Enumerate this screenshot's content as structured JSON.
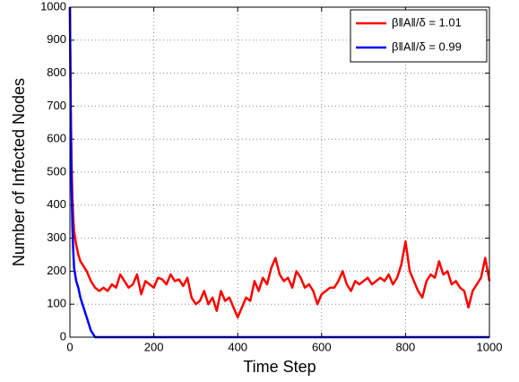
{
  "chart_data": {
    "type": "line",
    "x_label": "Time Step",
    "y_label": "Number of Infected Nodes",
    "x": [
      0,
      2,
      4,
      6,
      8,
      10,
      15,
      20,
      25,
      30,
      40,
      50,
      60,
      70,
      80,
      90,
      100,
      110,
      120,
      130,
      140,
      150,
      160,
      170,
      180,
      190,
      200,
      210,
      220,
      230,
      240,
      250,
      260,
      270,
      280,
      290,
      300,
      310,
      320,
      330,
      340,
      350,
      360,
      370,
      380,
      390,
      400,
      410,
      420,
      430,
      440,
      450,
      460,
      470,
      480,
      490,
      500,
      510,
      520,
      530,
      540,
      550,
      560,
      570,
      580,
      590,
      600,
      610,
      620,
      630,
      640,
      650,
      660,
      670,
      680,
      690,
      700,
      710,
      720,
      730,
      740,
      750,
      760,
      770,
      780,
      790,
      800,
      810,
      820,
      830,
      840,
      850,
      860,
      870,
      880,
      890,
      900,
      910,
      920,
      930,
      940,
      950,
      960,
      970,
      980,
      990,
      1000
    ],
    "series": [
      {
        "name": "β‖A‖/δ = 1.01",
        "color": "#ff0000",
        "values": [
          1000,
          700,
          520,
          420,
          360,
          320,
          280,
          250,
          230,
          220,
          200,
          170,
          150,
          140,
          150,
          140,
          160,
          150,
          190,
          170,
          150,
          160,
          190,
          130,
          170,
          160,
          150,
          180,
          175,
          160,
          190,
          170,
          175,
          155,
          180,
          120,
          100,
          110,
          140,
          100,
          120,
          80,
          140,
          110,
          120,
          90,
          60,
          90,
          120,
          110,
          170,
          140,
          180,
          160,
          210,
          240,
          190,
          170,
          180,
          150,
          200,
          180,
          150,
          160,
          140,
          100,
          130,
          140,
          150,
          150,
          170,
          200,
          160,
          140,
          170,
          160,
          170,
          180,
          160,
          170,
          180,
          170,
          190,
          160,
          180,
          220,
          290,
          200,
          170,
          140,
          120,
          170,
          190,
          180,
          230,
          190,
          200,
          160,
          170,
          150,
          140,
          90,
          140,
          160,
          180,
          240,
          170
        ]
      },
      {
        "name": "β‖A‖/δ = 0.99",
        "color": "#0000ff",
        "values": [
          1000,
          650,
          450,
          330,
          260,
          210,
          170,
          150,
          120,
          100,
          60,
          20,
          0,
          0,
          0,
          0,
          0,
          0,
          0,
          0,
          0,
          0,
          0,
          0,
          0,
          0,
          0,
          0,
          0,
          0,
          0,
          0,
          0,
          0,
          0,
          0,
          0,
          0,
          0,
          0,
          0,
          0,
          0,
          0,
          0,
          0,
          0,
          0,
          0,
          0,
          0,
          0,
          0,
          0,
          0,
          0,
          0,
          0,
          0,
          0,
          0,
          0,
          0,
          0,
          0,
          0,
          0,
          0,
          0,
          0,
          0,
          0,
          0,
          0,
          0,
          0,
          0,
          0,
          0,
          0,
          0,
          0,
          0,
          0,
          0,
          0,
          0,
          0,
          0,
          0,
          0,
          0,
          0,
          0,
          0,
          0,
          0,
          0,
          0,
          0,
          0,
          0,
          0,
          0,
          0,
          0,
          0
        ]
      }
    ],
    "xlim": [
      0,
      1000
    ],
    "xticks": [
      0,
      200,
      400,
      600,
      800,
      1000
    ],
    "ylim": [
      0,
      1000
    ],
    "yticks": [
      0,
      100,
      200,
      300,
      400,
      500,
      600,
      700,
      800,
      900,
      1000
    ],
    "grid": true,
    "legend": "upper right"
  }
}
